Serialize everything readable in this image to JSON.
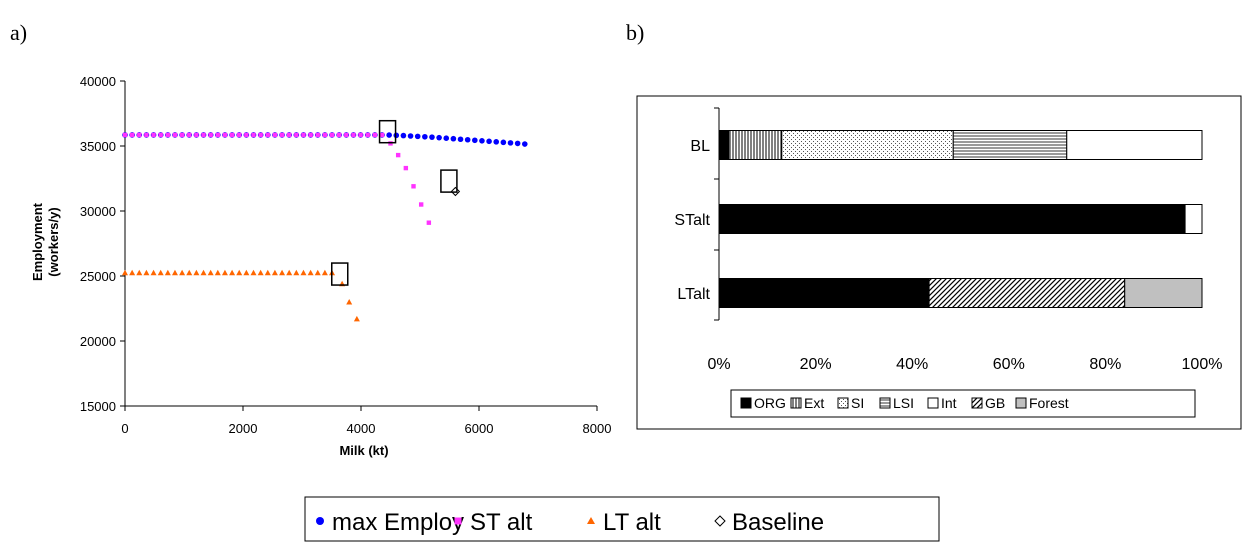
{
  "panels": {
    "a": "a)",
    "b": "b)"
  },
  "chart_data": [
    {
      "type": "scatter",
      "xlabel": "Milk (kt)",
      "ylabel_line1": "Employment",
      "ylabel_line2": "(workers/y)",
      "xlim": [
        0,
        8000
      ],
      "ylim": [
        15000,
        40000
      ],
      "xticks": [
        "0",
        "2000",
        "4000",
        "6000",
        "8000"
      ],
      "yticks": [
        "15000",
        "20000",
        "25000",
        "30000",
        "35000",
        "40000"
      ],
      "series": [
        {
          "name": "max Employ",
          "marker": "circle",
          "color": "#0000ff",
          "x": [
            0,
            121,
            242,
            363,
            484,
            605,
            726,
            847,
            968,
            1089,
            1210,
            1331,
            1452,
            1573,
            1694,
            1815,
            1936,
            2057,
            2178,
            2299,
            2420,
            2541,
            2662,
            2783,
            2904,
            3025,
            3146,
            3267,
            3388,
            3509,
            3630,
            3751,
            3872,
            3993,
            4114,
            4235,
            4356,
            4477,
            4598,
            4719,
            4840,
            4961,
            5082,
            5203,
            5324,
            5445,
            5566,
            5687,
            5808,
            5929,
            6050,
            6171,
            6292,
            6413,
            6534,
            6655,
            6776
          ],
          "y": [
            35850,
            35850,
            35850,
            35850,
            35850,
            35850,
            35850,
            35850,
            35850,
            35850,
            35850,
            35850,
            35850,
            35850,
            35850,
            35850,
            35850,
            35850,
            35850,
            35850,
            35850,
            35850,
            35850,
            35850,
            35850,
            35850,
            35850,
            35850,
            35850,
            35850,
            35850,
            35850,
            35850,
            35850,
            35850,
            35850,
            35850,
            35840,
            35820,
            35800,
            35770,
            35740,
            35710,
            35680,
            35640,
            35600,
            35560,
            35520,
            35480,
            35440,
            35400,
            35360,
            35320,
            35280,
            35240,
            35200,
            35150
          ]
        },
        {
          "name": "ST alt",
          "marker": "square",
          "color": "#ff33ff",
          "x": [
            0,
            121,
            242,
            363,
            484,
            605,
            726,
            847,
            968,
            1089,
            1210,
            1331,
            1452,
            1573,
            1694,
            1815,
            1936,
            2057,
            2178,
            2299,
            2420,
            2541,
            2662,
            2783,
            2904,
            3025,
            3146,
            3267,
            3388,
            3509,
            3630,
            3751,
            3872,
            3993,
            4114,
            4235,
            4356,
            4500,
            4630,
            4760,
            4890,
            5020,
            5150
          ],
          "y": [
            35850,
            35850,
            35850,
            35850,
            35850,
            35850,
            35850,
            35850,
            35850,
            35850,
            35850,
            35850,
            35850,
            35850,
            35850,
            35850,
            35850,
            35850,
            35850,
            35850,
            35850,
            35850,
            35850,
            35850,
            35850,
            35850,
            35850,
            35850,
            35850,
            35850,
            35850,
            35850,
            35850,
            35850,
            35850,
            35850,
            35850,
            35200,
            34300,
            33300,
            31900,
            30500,
            29100
          ]
        },
        {
          "name": "LT alt",
          "marker": "triangle",
          "color": "#ff6600",
          "x": [
            0,
            121,
            242,
            363,
            484,
            605,
            726,
            847,
            968,
            1089,
            1210,
            1331,
            1452,
            1573,
            1694,
            1815,
            1936,
            2057,
            2178,
            2299,
            2420,
            2541,
            2662,
            2783,
            2904,
            3025,
            3146,
            3267,
            3388,
            3509,
            3680,
            3800,
            3930
          ],
          "y": [
            25250,
            25250,
            25250,
            25250,
            25250,
            25250,
            25250,
            25250,
            25250,
            25250,
            25250,
            25250,
            25250,
            25250,
            25250,
            25250,
            25250,
            25250,
            25250,
            25250,
            25250,
            25250,
            25250,
            25250,
            25250,
            25250,
            25250,
            25250,
            25250,
            25250,
            24400,
            23000,
            21700
          ]
        },
        {
          "name": "Baseline",
          "marker": "diamond",
          "color": "#000000",
          "x": [
            5600
          ],
          "y": [
            31500
          ]
        }
      ],
      "highlight_boxes": [
        {
          "x": 4450,
          "y": 36100
        },
        {
          "x": 5490,
          "y": 32300
        },
        {
          "x": 3640,
          "y": 25150
        }
      ]
    },
    {
      "type": "bar",
      "orientation": "horizontal",
      "stacked": "percent",
      "categories": [
        "BL",
        "STalt",
        "LTalt"
      ],
      "xticks": [
        "0%",
        "20%",
        "40%",
        "60%",
        "80%",
        "100%"
      ],
      "series": [
        {
          "name": "ORG",
          "pattern": "solid-black",
          "values": [
            2,
            96.5,
            43.5
          ]
        },
        {
          "name": "Ext",
          "pattern": "vertical-lines",
          "values": [
            11,
            0,
            0
          ]
        },
        {
          "name": "SI",
          "pattern": "dots",
          "values": [
            35.5,
            0,
            0
          ]
        },
        {
          "name": "LSI",
          "pattern": "horizontal-lines",
          "values": [
            23.5,
            0,
            0
          ]
        },
        {
          "name": "Int",
          "pattern": "white",
          "values": [
            28,
            3.5,
            0
          ]
        },
        {
          "name": "GB",
          "pattern": "diagonal-lines",
          "values": [
            0,
            0,
            40.5
          ]
        },
        {
          "name": "Forest",
          "pattern": "solid-gray",
          "values": [
            0,
            0,
            16
          ]
        }
      ],
      "legend_position": "bottom"
    }
  ],
  "bottom_legend": [
    "max Employ",
    "ST alt",
    "LT alt",
    "Baseline"
  ]
}
